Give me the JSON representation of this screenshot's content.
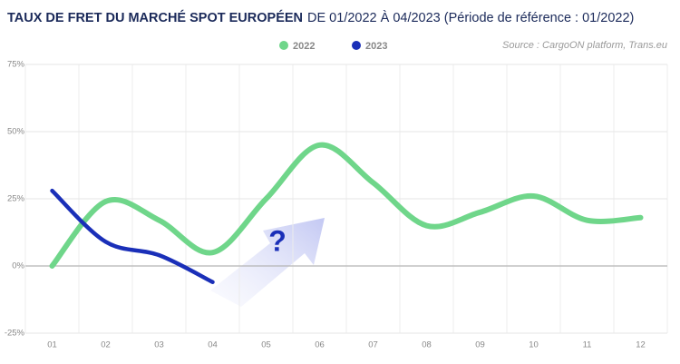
{
  "chart_data": {
    "type": "line",
    "title": "TAUX DE FRET DU MARCHÉ SPOT EUROPÉEN",
    "subtitle": "DE 01/2022 À 04/2023 (Période de référence : 01/2022)",
    "source": "Source : CargoON platform, Trans.eu",
    "annotation": "?",
    "categories": [
      "01",
      "02",
      "03",
      "04",
      "05",
      "06",
      "07",
      "08",
      "09",
      "10",
      "11",
      "12"
    ],
    "series": [
      {
        "name": "2022",
        "color": "#6fd68a",
        "values": [
          0,
          24,
          17,
          5,
          25,
          45,
          31,
          15,
          20,
          26,
          17,
          18
        ]
      },
      {
        "name": "2023",
        "color": "#1a2fb8",
        "values": [
          28,
          9,
          4,
          -6,
          null,
          null,
          null,
          null,
          null,
          null,
          null,
          null
        ]
      }
    ],
    "ylim": [
      -25,
      75
    ],
    "yticks": [
      {
        "value": -25,
        "label": "-25%"
      },
      {
        "value": 0,
        "label": "0%"
      },
      {
        "value": 25,
        "label": "25%"
      },
      {
        "value": 50,
        "label": "50%"
      },
      {
        "value": 75,
        "label": "75%"
      }
    ],
    "grid": true
  }
}
